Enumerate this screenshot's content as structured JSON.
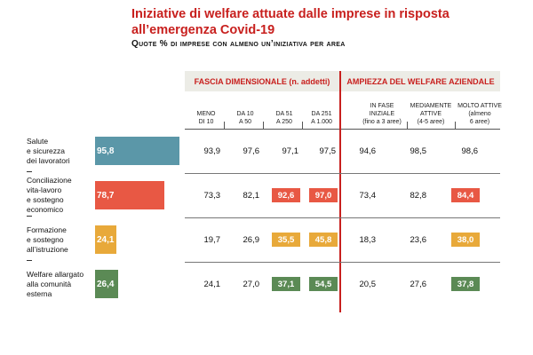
{
  "chart_data": {
    "type": "table",
    "title": "Iniziative di welfare attuate dalle imprese in risposta all’emergenza Covid-19",
    "subtitle": "Quote % di imprese con almeno un’iniziativa per area",
    "groups": [
      "FASCIA DIMENSIONALE (n. addetti)",
      "AMPIEZZA DEL WELFARE AZIENDALE"
    ],
    "columns": [
      [
        "MENO",
        "DI 10"
      ],
      [
        "DA 10",
        "A 50"
      ],
      [
        "DA 51",
        "A 250"
      ],
      [
        "DA 251",
        "A 1.000"
      ],
      [
        "IN FASE",
        "INIZIALE",
        "(fino a 3 aree)"
      ],
      [
        "MEDIAMENTE",
        "ATTIVE",
        "(4-5 aree)"
      ],
      [
        "MOLTO ATTIVE",
        "(almeno",
        "6 aree)"
      ]
    ],
    "rows": [
      {
        "label": [
          "Salute",
          "e sicurezza",
          "dei lavoratori"
        ],
        "total": "95,8",
        "total_value": 95.8,
        "color": "#5b97a8",
        "values": [
          "93,9",
          "97,6",
          "97,1",
          "97,5",
          "94,6",
          "98,5",
          "98,6"
        ],
        "highlight": [
          false,
          false,
          false,
          false,
          false,
          false,
          false
        ]
      },
      {
        "label": [
          "Conciliazione",
          "vita-lavoro",
          "e sostegno",
          "economico"
        ],
        "total": "78,7",
        "total_value": 78.7,
        "color": "#e85844",
        "values": [
          "73,3",
          "82,1",
          "92,6",
          "97,0",
          "73,4",
          "82,8",
          "84,4"
        ],
        "highlight": [
          false,
          false,
          true,
          true,
          false,
          false,
          true
        ]
      },
      {
        "label": [
          "Formazione",
          "e sostegno",
          "all’istruzione"
        ],
        "total": "24,1",
        "total_value": 24.1,
        "color": "#e8a93a",
        "values": [
          "19,7",
          "26,9",
          "35,5",
          "45,8",
          "18,3",
          "23,6",
          "38,0"
        ],
        "highlight": [
          false,
          false,
          true,
          true,
          false,
          false,
          true
        ]
      },
      {
        "label": [
          "Welfare allargato",
          "alla comunità",
          "esterna"
        ],
        "total": "26,4",
        "total_value": 26.4,
        "color": "#5b8a55",
        "values": [
          "24,1",
          "27,0",
          "37,1",
          "54,5",
          "20,5",
          "27,6",
          "37,8"
        ],
        "highlight": [
          false,
          false,
          true,
          true,
          false,
          false,
          true
        ]
      }
    ],
    "accent_color": "#c8201e"
  }
}
